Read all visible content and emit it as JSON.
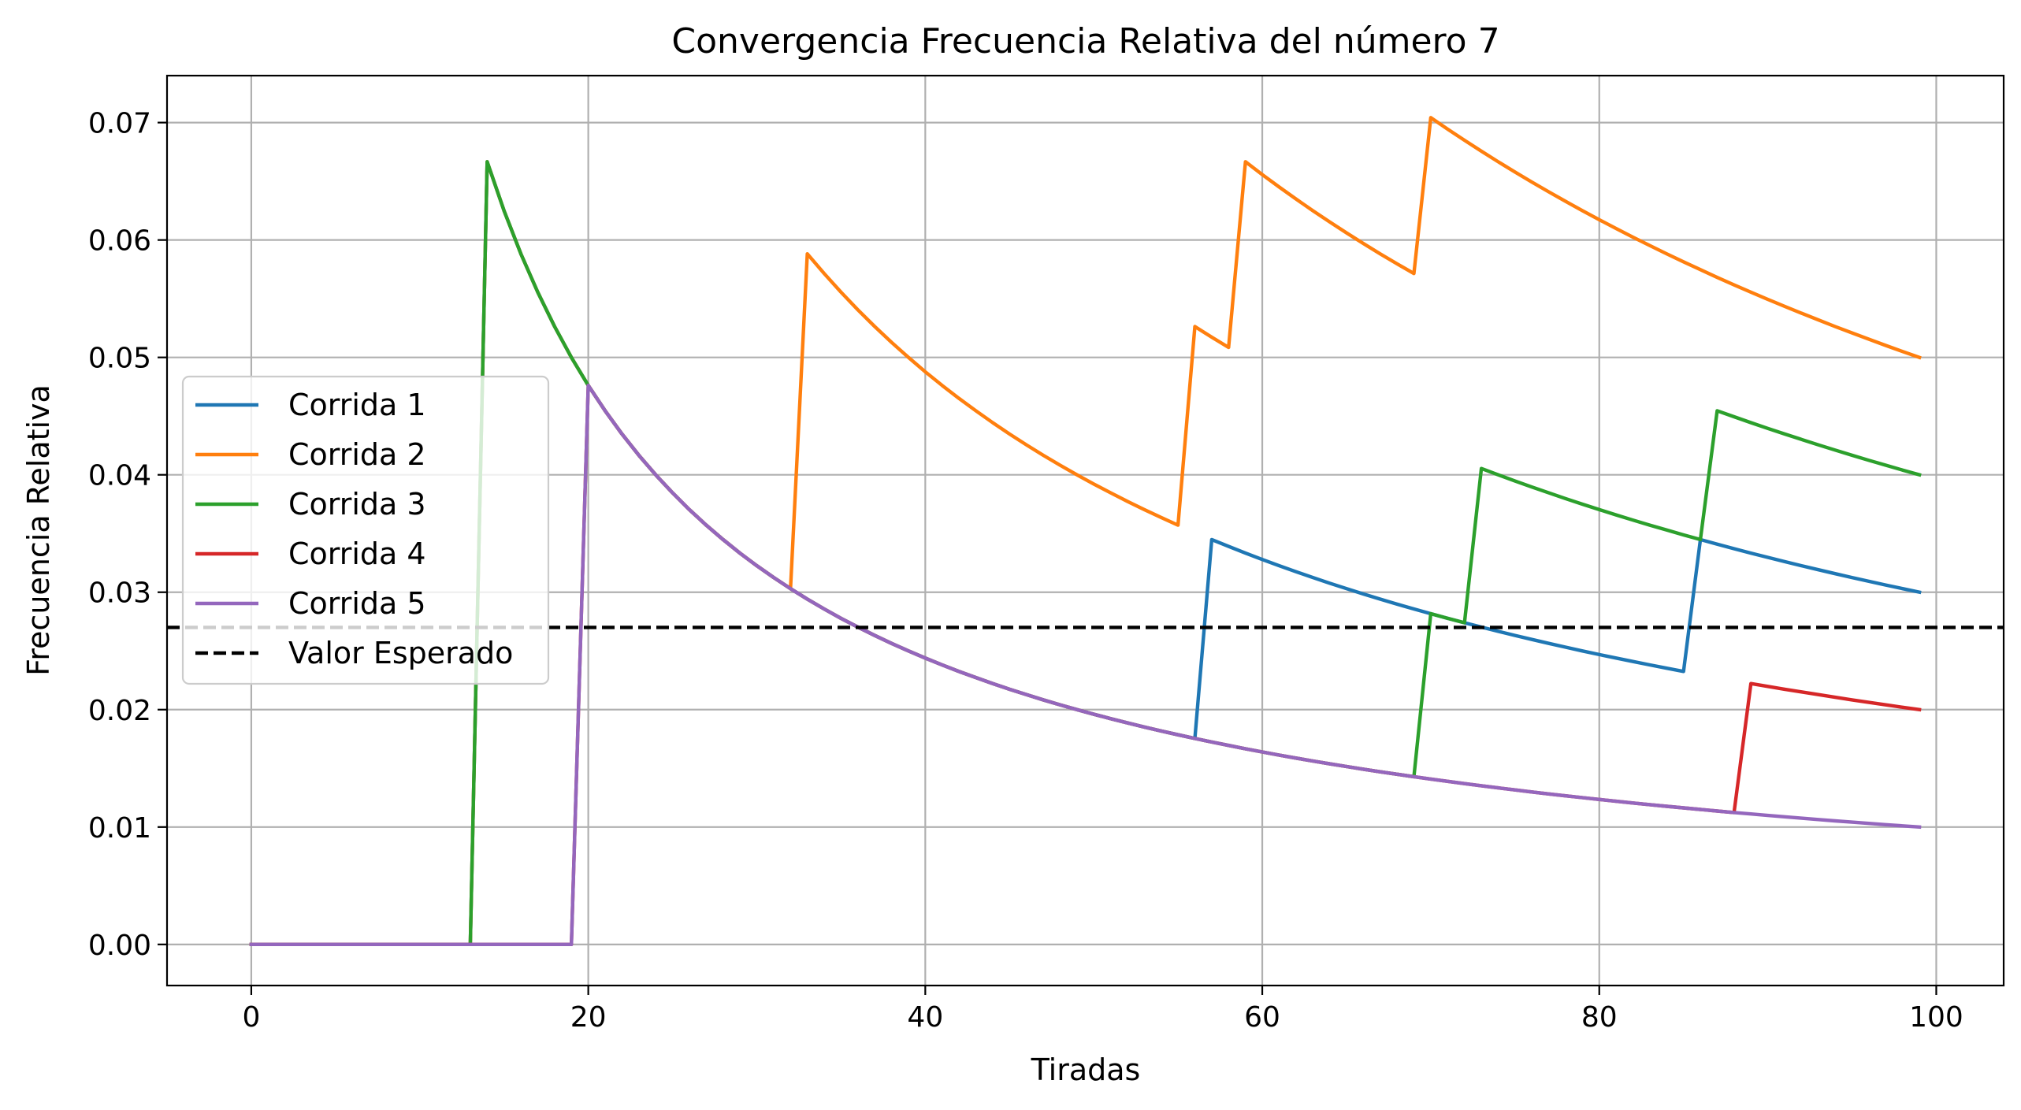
{
  "chart_data": {
    "type": "line",
    "title": "Convergencia Frecuencia Relativa del número 7",
    "xlabel": "Tiradas",
    "ylabel": "Frecuencia Relativa",
    "xlim": [
      -5,
      104
    ],
    "ylim": [
      -0.0035,
      0.074
    ],
    "xticks": [
      0,
      20,
      40,
      60,
      80,
      100
    ],
    "yticks": [
      0.0,
      0.01,
      0.02,
      0.03,
      0.04,
      0.05,
      0.06,
      0.07
    ],
    "ytick_labels": [
      "0.00",
      "0.01",
      "0.02",
      "0.03",
      "0.04",
      "0.05",
      "0.06",
      "0.07"
    ],
    "grid": true,
    "legend_position": "center-left",
    "n_tiradas": 100,
    "series": [
      {
        "name": "Corrida 1",
        "color": "#1f77b4",
        "hits": [
          14,
          57,
          86
        ]
      },
      {
        "name": "Corrida 2",
        "color": "#ff7f0e",
        "hits": [
          14,
          33,
          56,
          59,
          70
        ]
      },
      {
        "name": "Corrida 3",
        "color": "#2ca02c",
        "hits": [
          14,
          70,
          73,
          87
        ]
      },
      {
        "name": "Corrida 4",
        "color": "#d62728",
        "hits": [
          20,
          89
        ]
      },
      {
        "name": "Corrida 5",
        "color": "#9467bd",
        "hits": [
          20
        ]
      }
    ],
    "reference": {
      "name": "Valor Esperado",
      "value": 0.027,
      "color": "#000000",
      "style": "dashed"
    }
  }
}
